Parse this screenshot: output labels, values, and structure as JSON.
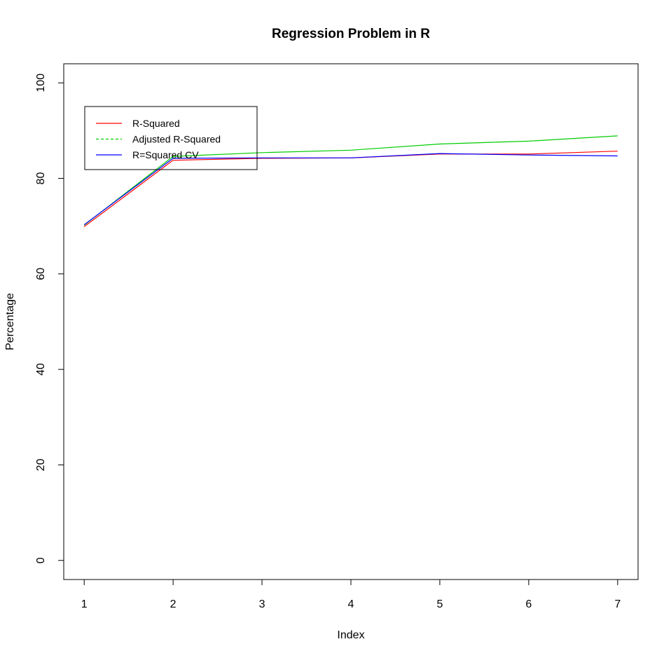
{
  "chart_data": {
    "type": "line",
    "title": "Regression Problem in R",
    "xlabel": "Index",
    "ylabel": "Percentage",
    "x": [
      1,
      2,
      3,
      4,
      5,
      6,
      7
    ],
    "xlim": [
      0.77,
      7.23
    ],
    "ylim": [
      -4,
      104
    ],
    "xticks": [
      "1",
      "2",
      "3",
      "4",
      "5",
      "6",
      "7"
    ],
    "yticks": [
      "0",
      "20",
      "40",
      "60",
      "80",
      "100"
    ],
    "grid": false,
    "legend_position": "top-left",
    "series": [
      {
        "name": "R-Squared",
        "color": "#ff0000",
        "dash": "solid",
        "values": [
          69.9,
          83.8,
          84.2,
          84.3,
          85.1,
          85.1,
          85.7
        ]
      },
      {
        "name": "Adjusted R-Squared",
        "color": "#00cd00",
        "dash": "dashed",
        "values": [
          70.2,
          84.6,
          85.4,
          85.9,
          87.2,
          87.8,
          88.9
        ]
      },
      {
        "name": "R=Squared CV",
        "color": "#0000ff",
        "dash": "solid",
        "values": [
          70.3,
          84.2,
          84.3,
          84.3,
          85.2,
          84.9,
          84.7
        ]
      }
    ]
  }
}
